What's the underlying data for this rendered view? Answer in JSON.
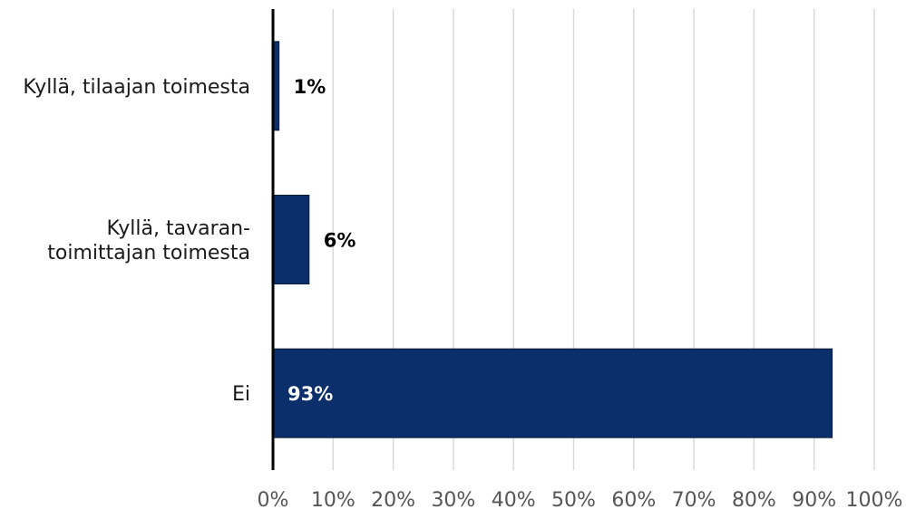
{
  "chart_data": {
    "type": "bar",
    "orientation": "horizontal",
    "title": "",
    "xlabel": "",
    "ylabel": "",
    "categories": [
      [
        "Kyllä, tilaajan toimesta"
      ],
      [
        "Kyllä, tavaran-",
        "toimittajan toimesta"
      ],
      [
        "Ei"
      ]
    ],
    "values": [
      1,
      6,
      93
    ],
    "data_labels": [
      "1%",
      "6%",
      "93%"
    ],
    "xlim": [
      0,
      100
    ],
    "ticks": [
      "0%",
      "10%",
      "20%",
      "30%",
      "40%",
      "50%",
      "60%",
      "70%",
      "80%",
      "90%",
      "100%"
    ],
    "grid": true,
    "legend": "none",
    "colors": {
      "bar": "#0a2f6b",
      "bar_edge": "#0a1a33",
      "grid": "#d9d9d9",
      "axis": "#000000",
      "label_outside": "#000000",
      "label_inside": "#ffffff"
    }
  }
}
